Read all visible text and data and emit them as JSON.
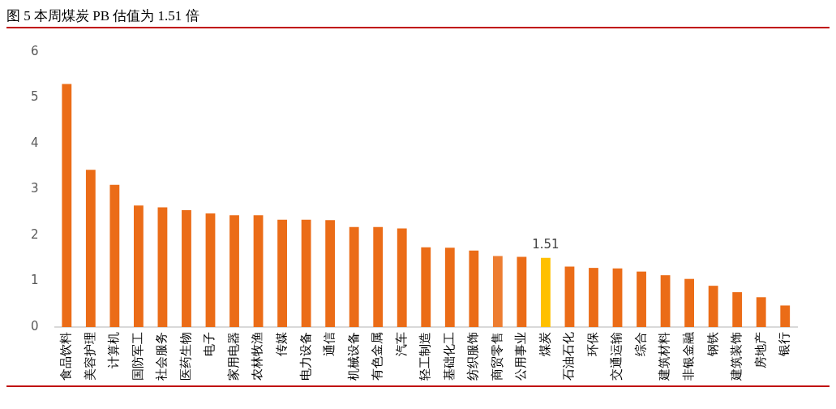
{
  "chart_data": {
    "type": "bar",
    "title": "图 5 本周煤炭 PB 估值为 1.51 倍",
    "categories": [
      "食品饮料",
      "美容护理",
      "计算机",
      "国防军工",
      "社会服务",
      "医药生物",
      "电子",
      "家用电器",
      "农林牧渔",
      "传媒",
      "电力设备",
      "通信",
      "机械设备",
      "有色金属",
      "汽车",
      "轻工制造",
      "基础化工",
      "纺织服饰",
      "商贸零售",
      "公用事业",
      "煤炭",
      "石油石化",
      "环保",
      "交通运输",
      "综合",
      "建筑材料",
      "非银金融",
      "钢铁",
      "建筑装饰",
      "房地产",
      "银行"
    ],
    "values": [
      5.3,
      3.43,
      3.1,
      2.65,
      2.61,
      2.55,
      2.48,
      2.44,
      2.44,
      2.34,
      2.34,
      2.33,
      2.18,
      2.18,
      2.15,
      1.74,
      1.73,
      1.67,
      1.55,
      1.53,
      1.51,
      1.32,
      1.29,
      1.28,
      1.21,
      1.13,
      1.05,
      0.9,
      0.76,
      0.65,
      0.47
    ],
    "colors": [
      "#eb6c17",
      "#eb6c17",
      "#eb6c17",
      "#eb6c17",
      "#eb6c17",
      "#eb6c17",
      "#eb6c17",
      "#eb6c17",
      "#eb6c17",
      "#eb6c17",
      "#eb6c17",
      "#eb6c17",
      "#eb6c17",
      "#eb6c17",
      "#eb6c17",
      "#eb6c17",
      "#eb6c17",
      "#eb6c17",
      "#ed7d31",
      "#eb6c17",
      "#ffc000",
      "#eb6c17",
      "#eb6c17",
      "#eb6c17",
      "#eb6c17",
      "#eb6c17",
      "#eb6c17",
      "#eb6c17",
      "#eb6c17",
      "#eb6c17",
      "#eb6c17"
    ],
    "value_labels": [
      null,
      null,
      null,
      null,
      null,
      null,
      null,
      null,
      null,
      null,
      null,
      null,
      null,
      null,
      null,
      null,
      null,
      null,
      null,
      null,
      "1.51",
      null,
      null,
      null,
      null,
      null,
      null,
      null,
      null,
      null,
      null
    ],
    "ylim": [
      0,
      6
    ],
    "yticks": [
      0,
      1,
      2,
      3,
      4,
      5,
      6
    ],
    "grid": false,
    "legend": false
  }
}
